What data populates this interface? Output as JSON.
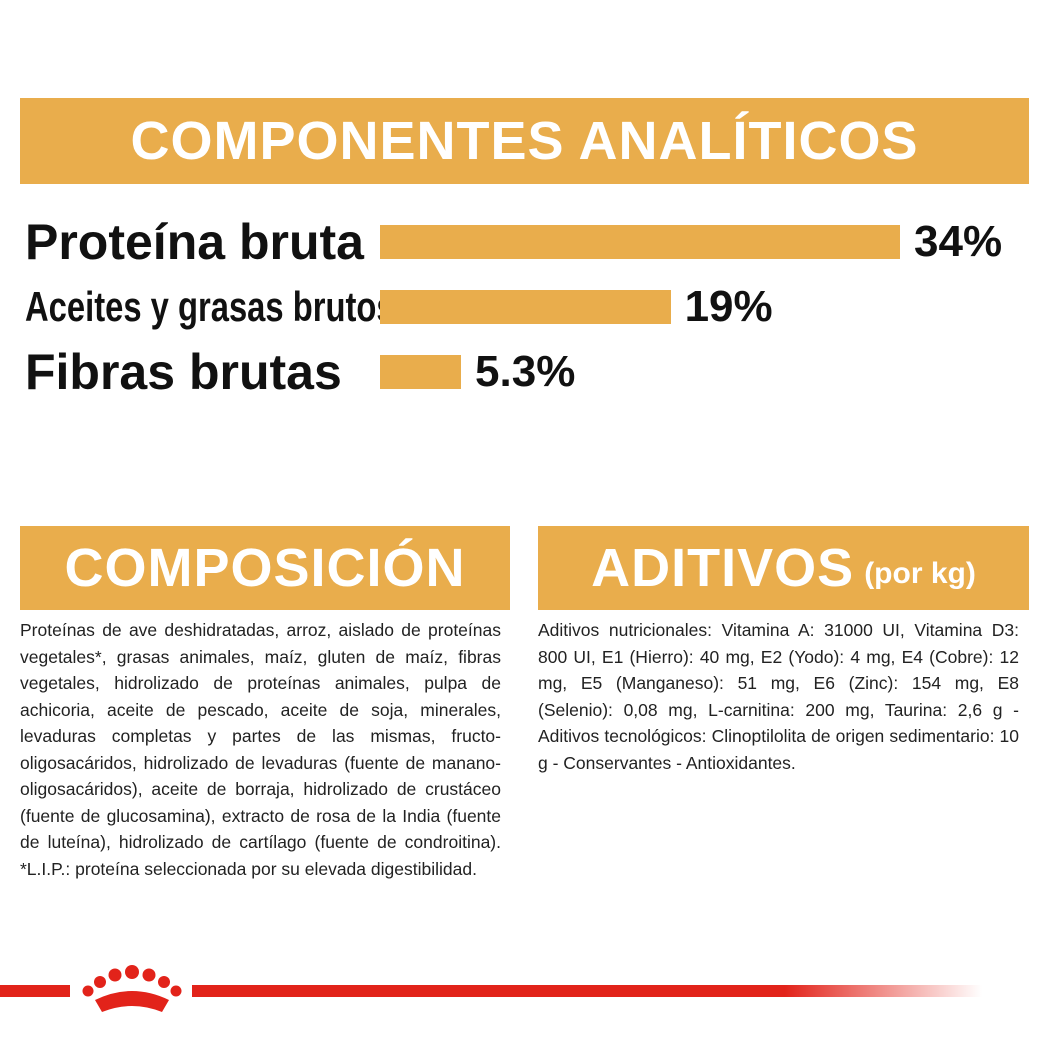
{
  "chart_data": {
    "type": "bar",
    "title": "COMPONENTES ANALÍTICOS",
    "categories": [
      "Proteína bruta",
      "Aceites y grasas brutos",
      "Fibras brutas"
    ],
    "values": [
      34,
      19,
      5.3
    ],
    "value_labels": [
      "34%",
      "19%",
      "5.3%"
    ],
    "color": "#e9ad4c"
  },
  "composition": {
    "title": "COMPOSICIÓN",
    "text": "Proteínas de ave deshidratadas, arroz, aislado de proteínas vegetales*, grasas animales, maíz, gluten de maíz, fibras vegetales, hidrolizado de proteínas animales, pulpa de achicoria, aceite de pescado, aceite de soja, minerales, levaduras completas y partes de las mismas, fructo-oligosacáridos, hidrolizado de levaduras (fuente de manano-oligosacáridos), aceite de borraja, hidrolizado de crustáceo (fuente de glucosamina), extracto de rosa de la India (fuente de luteína), hidrolizado de cartílago (fuente de condroitina). *L.I.P.: proteína seleccionada por su elevada digestibilidad."
  },
  "additives": {
    "title": "ADITIVOS",
    "subtitle": "(por kg)",
    "text": "Aditivos nutricionales: Vitamina A: 31000 UI, Vitamina D3: 800 UI, E1 (Hierro): 40 mg, E2 (Yodo): 4 mg, E4 (Cobre): 12 mg, E5 (Manganeso): 51 mg, E6 (Zinc): 154 mg, E8 (Selenio): 0,08 mg, L-carnitina: 200 mg, Taurina: 2,6 g - Aditivos tecnológicos: Clinoptilolita de origen sedimentario: 10 g - Conservantes - Antioxidantes."
  }
}
